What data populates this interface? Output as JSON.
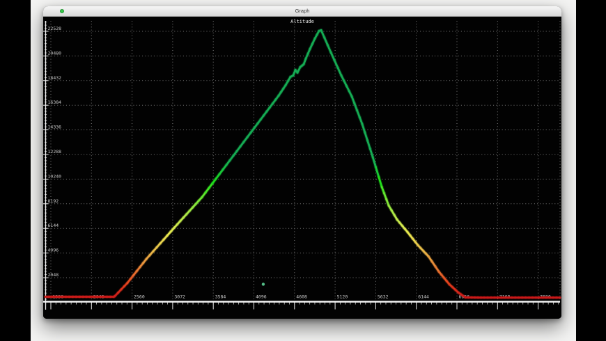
{
  "window": {
    "title": "Graph",
    "controls": [
      {
        "name": "green",
        "color": "#34c749"
      }
    ]
  },
  "chart_data": {
    "type": "line",
    "title": "Altitude",
    "xlabel": "",
    "ylabel": "",
    "x_ticks": [
      1536,
      2048,
      2560,
      3072,
      3584,
      4096,
      4608,
      5120,
      5632,
      6144,
      6656,
      7168,
      7680
    ],
    "y_ticks": [
      2048,
      4096,
      6144,
      8192,
      10240,
      12288,
      14336,
      16384,
      18432,
      20480,
      22528
    ],
    "x_range": [
      1466,
      7955
    ],
    "y_range": [
      0,
      23400
    ],
    "grid": "dotted",
    "legend": "none",
    "background": "#020202",
    "axis_color": "#f5f5f5",
    "grid_color": "#9a9a9a",
    "label_color": "#c9c9c9",
    "color_mode": "altitude gradient: red (low) -> orange -> yellow -> green (high)",
    "gradient": {
      "alt_low": 350,
      "alt_high": 11850,
      "low_hint": "#cc2030",
      "mid_hint": "#e6dc6a",
      "high_hint": "#1fa55c"
    },
    "series": [
      {
        "name": "Altitude",
        "points": [
          [
            1466,
            460
          ],
          [
            2330,
            460
          ],
          [
            2344,
            520
          ],
          [
            2500,
            1600
          ],
          [
            2739,
            3590
          ],
          [
            3090,
            6190
          ],
          [
            3442,
            8740
          ],
          [
            3793,
            11800
          ],
          [
            4144,
            14870
          ],
          [
            4408,
            17180
          ],
          [
            4496,
            18050
          ],
          [
            4557,
            18740
          ],
          [
            4592,
            18860
          ],
          [
            4619,
            19320
          ],
          [
            4645,
            19090
          ],
          [
            4680,
            19550
          ],
          [
            4724,
            19790
          ],
          [
            4750,
            20250
          ],
          [
            4803,
            21060
          ],
          [
            4865,
            21930
          ],
          [
            4917,
            22560
          ],
          [
            4944,
            22620
          ],
          [
            5067,
            20770
          ],
          [
            5198,
            18860
          ],
          [
            5330,
            17120
          ],
          [
            5462,
            14810
          ],
          [
            5594,
            12090
          ],
          [
            5708,
            9600
          ],
          [
            5796,
            8040
          ],
          [
            5901,
            6880
          ],
          [
            6033,
            5840
          ],
          [
            6165,
            4740
          ],
          [
            6297,
            3820
          ],
          [
            6428,
            2550
          ],
          [
            6560,
            1500
          ],
          [
            6674,
            810
          ],
          [
            6762,
            410
          ],
          [
            7000,
            390
          ],
          [
            7955,
            390
          ]
        ]
      }
    ],
    "marker": {
      "x": 4214,
      "altitude": 1500,
      "color": "#58c88f"
    }
  }
}
